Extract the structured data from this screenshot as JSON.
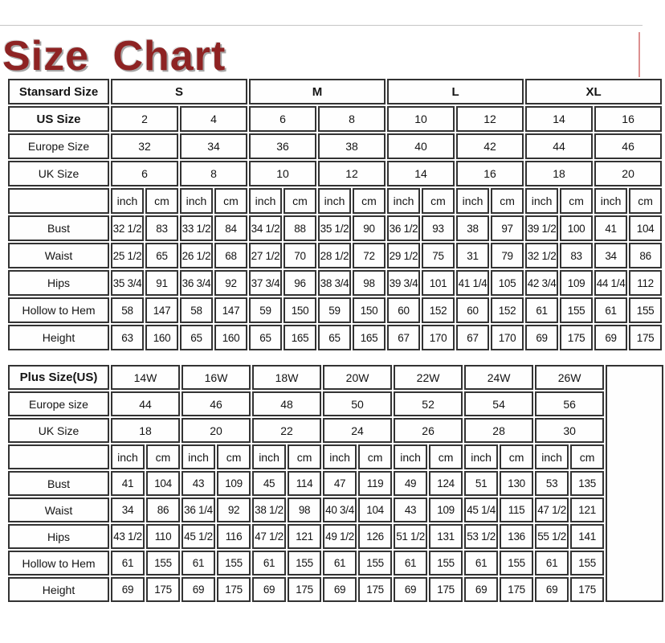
{
  "page": {
    "title": "Size Chart",
    "title_color": "#8e2323",
    "table_border_color": "#333333"
  },
  "standard_table": {
    "corner_label": "Stansard Size",
    "size_groups": [
      "S",
      "M",
      "L",
      "XL"
    ],
    "size_rows": [
      {
        "label": "US Size",
        "bold": true,
        "values": [
          "2",
          "4",
          "6",
          "8",
          "10",
          "12",
          "14",
          "16"
        ]
      },
      {
        "label": "Europe Size",
        "bold": false,
        "values": [
          "32",
          "34",
          "36",
          "38",
          "40",
          "42",
          "44",
          "46"
        ]
      },
      {
        "label": "UK Size",
        "bold": false,
        "values": [
          "6",
          "8",
          "10",
          "12",
          "14",
          "16",
          "18",
          "20"
        ]
      }
    ],
    "unit_labels": [
      "inch",
      "cm"
    ],
    "unit_pairs": 8,
    "trailing_empty_column": false,
    "measure_rows": [
      {
        "label": "Bust",
        "values": [
          "32 1/2",
          "83",
          "33 1/2",
          "84",
          "34 1/2",
          "88",
          "35 1/2",
          "90",
          "36 1/2",
          "93",
          "38",
          "97",
          "39 1/2",
          "100",
          "41",
          "104"
        ]
      },
      {
        "label": "Waist",
        "values": [
          "25 1/2",
          "65",
          "26 1/2",
          "68",
          "27 1/2",
          "70",
          "28 1/2",
          "72",
          "29 1/2",
          "75",
          "31",
          "79",
          "32 1/2",
          "83",
          "34",
          "86"
        ]
      },
      {
        "label": "Hips",
        "values": [
          "35 3/4",
          "91",
          "36 3/4",
          "92",
          "37 3/4",
          "96",
          "38 3/4",
          "98",
          "39 3/4",
          "101",
          "41 1/4",
          "105",
          "42 3/4",
          "109",
          "44 1/4",
          "112"
        ]
      },
      {
        "label": "Hollow to Hem",
        "values": [
          "58",
          "147",
          "58",
          "147",
          "59",
          "150",
          "59",
          "150",
          "60",
          "152",
          "60",
          "152",
          "61",
          "155",
          "61",
          "155"
        ]
      },
      {
        "label": "Height",
        "values": [
          "63",
          "160",
          "65",
          "160",
          "65",
          "165",
          "65",
          "165",
          "67",
          "170",
          "67",
          "170",
          "69",
          "175",
          "69",
          "175"
        ]
      }
    ]
  },
  "plus_table": {
    "corner_label": "Plus Size(US)",
    "size_groups": [
      "14W",
      "16W",
      "18W",
      "20W",
      "22W",
      "24W",
      "26W"
    ],
    "size_rows": [
      {
        "label": "Europe size",
        "bold": false,
        "values": [
          "44",
          "46",
          "48",
          "50",
          "52",
          "54",
          "56"
        ]
      },
      {
        "label": "UK Size",
        "bold": false,
        "values": [
          "18",
          "20",
          "22",
          "24",
          "26",
          "28",
          "30"
        ]
      }
    ],
    "unit_labels": [
      "inch",
      "cm"
    ],
    "unit_pairs": 7,
    "trailing_empty_column": true,
    "measure_rows": [
      {
        "label": "Bust",
        "values": [
          "41",
          "104",
          "43",
          "109",
          "45",
          "114",
          "47",
          "119",
          "49",
          "124",
          "51",
          "130",
          "53",
          "135"
        ]
      },
      {
        "label": "Waist",
        "values": [
          "34",
          "86",
          "36 1/4",
          "92",
          "38 1/2",
          "98",
          "40 3/4",
          "104",
          "43",
          "109",
          "45 1/4",
          "115",
          "47 1/2",
          "121"
        ]
      },
      {
        "label": "Hips",
        "values": [
          "43 1/2",
          "110",
          "45 1/2",
          "116",
          "47 1/2",
          "121",
          "49 1/2",
          "126",
          "51 1/2",
          "131",
          "53 1/2",
          "136",
          "55 1/2",
          "141"
        ]
      },
      {
        "label": "Hollow to Hem",
        "values": [
          "61",
          "155",
          "61",
          "155",
          "61",
          "155",
          "61",
          "155",
          "61",
          "155",
          "61",
          "155",
          "61",
          "155"
        ]
      },
      {
        "label": "Height",
        "values": [
          "69",
          "175",
          "69",
          "175",
          "69",
          "175",
          "69",
          "175",
          "69",
          "175",
          "69",
          "175",
          "69",
          "175"
        ]
      }
    ]
  }
}
